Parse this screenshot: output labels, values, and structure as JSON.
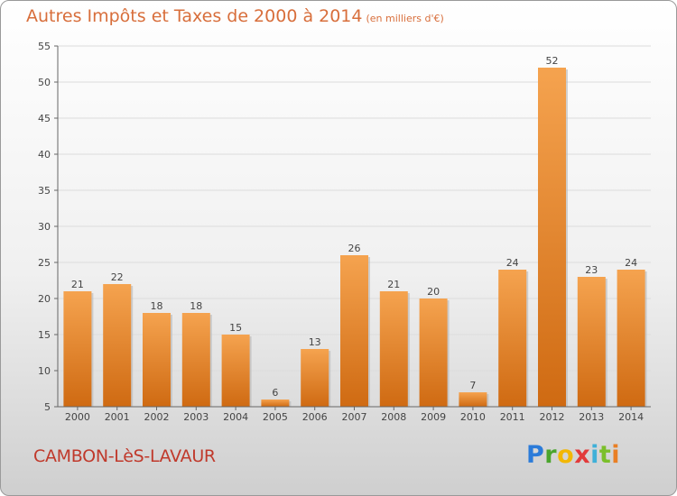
{
  "title": "Autres Impôts et Taxes de 2000 à 2014",
  "unit_label": "(en milliers d'€)",
  "town": "CAMBON-LèS-LAVAUR",
  "logo": {
    "p": "P",
    "r": "r",
    "o": "o",
    "x": "x",
    "i1": "i",
    "t": "t",
    "i2": "i"
  },
  "colors": {
    "bar_top": "#f5a34f",
    "bar_bottom": "#cf6a12",
    "title": "#d86e3b",
    "town": "#c0392b"
  },
  "chart_data": {
    "type": "bar",
    "categories": [
      "2000",
      "2001",
      "2002",
      "2003",
      "2004",
      "2005",
      "2006",
      "2007",
      "2008",
      "2009",
      "2010",
      "2011",
      "2012",
      "2013",
      "2014"
    ],
    "values": [
      21,
      22,
      18,
      18,
      15,
      6,
      13,
      26,
      21,
      20,
      7,
      24,
      52,
      23,
      24
    ],
    "title": "Autres Impôts et Taxes de 2000 à 2014",
    "xlabel": "",
    "ylabel": "",
    "ylim": [
      5,
      55
    ],
    "yticks": [
      5,
      10,
      15,
      20,
      25,
      30,
      35,
      40,
      45,
      50,
      55
    ],
    "grid": true
  }
}
